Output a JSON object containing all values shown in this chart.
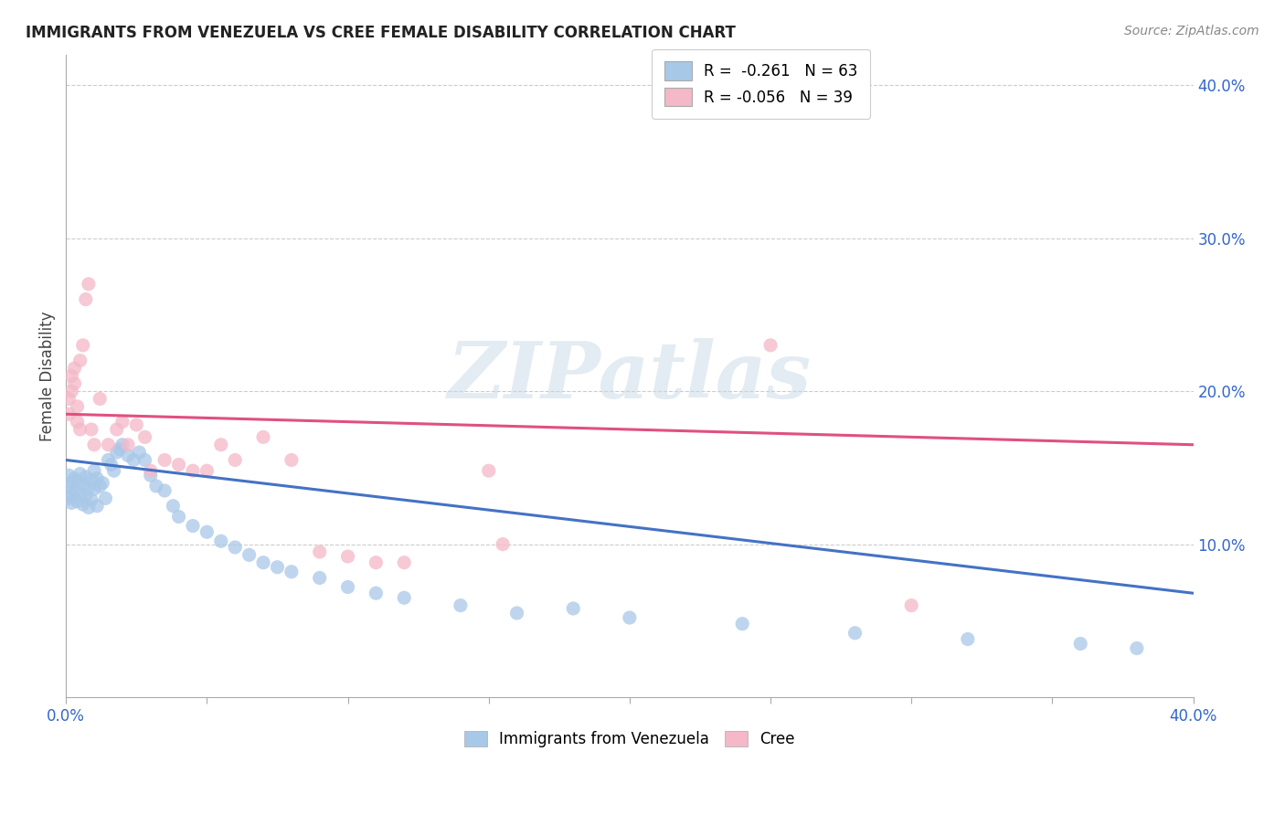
{
  "title": "IMMIGRANTS FROM VENEZUELA VS CREE FEMALE DISABILITY CORRELATION CHART",
  "source": "Source: ZipAtlas.com",
  "ylabel": "Female Disability",
  "right_yticks": [
    "40.0%",
    "30.0%",
    "20.0%",
    "10.0%"
  ],
  "right_ytick_vals": [
    0.4,
    0.3,
    0.2,
    0.1
  ],
  "legend_line1": "R =  -0.261   N = 63",
  "legend_line2": "R = -0.056   N = 39",
  "blue_color": "#a8c8e8",
  "pink_color": "#f4b8c8",
  "blue_line_color": "#4472c4",
  "pink_line_color": "#e05080",
  "watermark": "ZIPatlas",
  "xlim": [
    0.0,
    0.4
  ],
  "ylim": [
    0.0,
    0.42
  ],
  "blue_scatter_x": [
    0.001,
    0.001,
    0.001,
    0.002,
    0.002,
    0.002,
    0.003,
    0.003,
    0.004,
    0.004,
    0.005,
    0.005,
    0.006,
    0.006,
    0.007,
    0.007,
    0.008,
    0.008,
    0.009,
    0.009,
    0.01,
    0.01,
    0.011,
    0.011,
    0.012,
    0.013,
    0.014,
    0.015,
    0.016,
    0.017,
    0.018,
    0.019,
    0.02,
    0.022,
    0.024,
    0.026,
    0.028,
    0.03,
    0.032,
    0.035,
    0.038,
    0.04,
    0.045,
    0.05,
    0.055,
    0.06,
    0.065,
    0.07,
    0.075,
    0.08,
    0.09,
    0.1,
    0.11,
    0.12,
    0.14,
    0.16,
    0.18,
    0.2,
    0.24,
    0.28,
    0.32,
    0.36,
    0.38
  ],
  "blue_scatter_y": [
    0.145,
    0.138,
    0.13,
    0.14,
    0.132,
    0.127,
    0.143,
    0.135,
    0.141,
    0.128,
    0.146,
    0.133,
    0.139,
    0.126,
    0.144,
    0.131,
    0.137,
    0.124,
    0.142,
    0.129,
    0.148,
    0.136,
    0.143,
    0.125,
    0.138,
    0.14,
    0.13,
    0.155,
    0.152,
    0.148,
    0.16,
    0.162,
    0.165,
    0.158,
    0.155,
    0.16,
    0.155,
    0.145,
    0.138,
    0.135,
    0.125,
    0.118,
    0.112,
    0.108,
    0.102,
    0.098,
    0.093,
    0.088,
    0.085,
    0.082,
    0.078,
    0.072,
    0.068,
    0.065,
    0.06,
    0.055,
    0.058,
    0.052,
    0.048,
    0.042,
    0.038,
    0.035,
    0.032
  ],
  "pink_scatter_x": [
    0.001,
    0.001,
    0.002,
    0.002,
    0.003,
    0.003,
    0.004,
    0.004,
    0.005,
    0.005,
    0.006,
    0.007,
    0.008,
    0.009,
    0.01,
    0.012,
    0.015,
    0.018,
    0.02,
    0.022,
    0.025,
    0.028,
    0.03,
    0.035,
    0.04,
    0.045,
    0.05,
    0.055,
    0.06,
    0.07,
    0.08,
    0.09,
    0.1,
    0.11,
    0.12,
    0.15,
    0.155,
    0.25,
    0.3
  ],
  "pink_scatter_y": [
    0.195,
    0.185,
    0.21,
    0.2,
    0.205,
    0.215,
    0.19,
    0.18,
    0.22,
    0.175,
    0.23,
    0.26,
    0.27,
    0.175,
    0.165,
    0.195,
    0.165,
    0.175,
    0.18,
    0.165,
    0.178,
    0.17,
    0.148,
    0.155,
    0.152,
    0.148,
    0.148,
    0.165,
    0.155,
    0.17,
    0.155,
    0.095,
    0.092,
    0.088,
    0.088,
    0.148,
    0.1,
    0.23,
    0.06
  ],
  "blue_trend_x": [
    0.0,
    0.4
  ],
  "blue_trend_y": [
    0.155,
    0.068
  ],
  "pink_trend_x": [
    0.0,
    0.4
  ],
  "pink_trend_y": [
    0.185,
    0.165
  ],
  "background_color": "#ffffff",
  "grid_color": "#cccccc",
  "xtick_positions": [
    0.0,
    0.05,
    0.1,
    0.15,
    0.2,
    0.25,
    0.3,
    0.35,
    0.4
  ]
}
